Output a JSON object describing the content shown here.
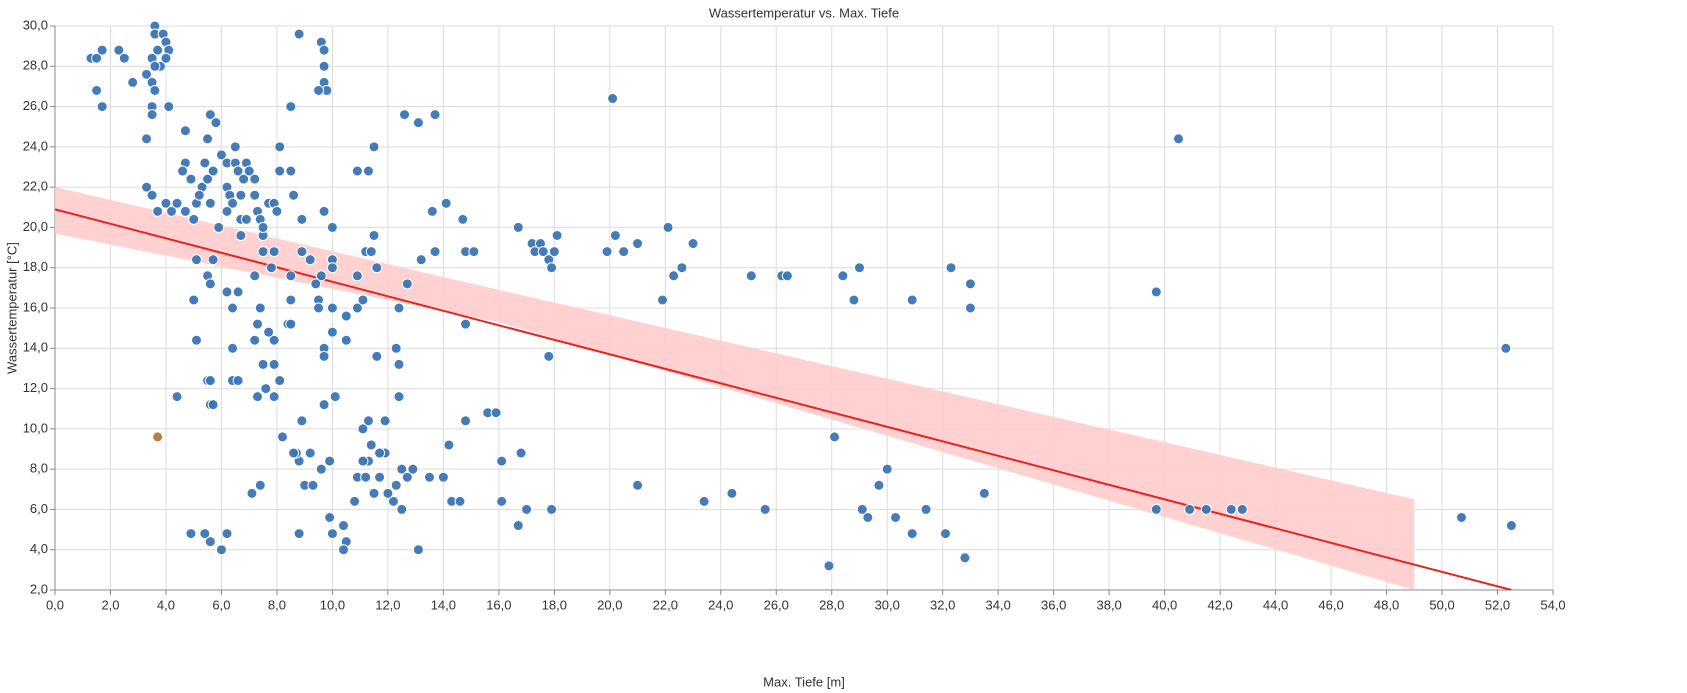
{
  "chart_data": {
    "type": "scatter",
    "title": "Wassertemperatur vs. Max. Tiefe",
    "x_label": "Max. Tiefe [m]",
    "y_label": "Wassertemperatur [°C]",
    "xlim": [
      0,
      54
    ],
    "ylim": [
      2,
      30
    ],
    "grid": true,
    "xticks": [
      {
        "value": 0,
        "label": "0,0"
      },
      {
        "value": 2,
        "label": "2,0"
      },
      {
        "value": 4,
        "label": "4,0"
      },
      {
        "value": 6,
        "label": "6,0"
      },
      {
        "value": 8,
        "label": "8,0"
      },
      {
        "value": 10,
        "label": "10,0"
      },
      {
        "value": 12,
        "label": "12,0"
      },
      {
        "value": 14,
        "label": "14,0"
      },
      {
        "value": 16,
        "label": "16,0"
      },
      {
        "value": 18,
        "label": "18,0"
      },
      {
        "value": 20,
        "label": "20,0"
      },
      {
        "value": 22,
        "label": "22,0"
      },
      {
        "value": 24,
        "label": "24,0"
      },
      {
        "value": 26,
        "label": "26,0"
      },
      {
        "value": 28,
        "label": "28,0"
      },
      {
        "value": 30,
        "label": "30,0"
      },
      {
        "value": 32,
        "label": "32,0"
      },
      {
        "value": 34,
        "label": "34,0"
      },
      {
        "value": 36,
        "label": "36,0"
      },
      {
        "value": 38,
        "label": "38,0"
      },
      {
        "value": 40,
        "label": "40,0"
      },
      {
        "value": 42,
        "label": "42,0"
      },
      {
        "value": 44,
        "label": "44,0"
      },
      {
        "value": 46,
        "label": "46,0"
      },
      {
        "value": 48,
        "label": "48,0"
      },
      {
        "value": 50,
        "label": "50,0"
      },
      {
        "value": 52,
        "label": "52,0"
      },
      {
        "value": 54,
        "label": "54,0"
      }
    ],
    "yticks": [
      {
        "value": 2,
        "label": "2,0"
      },
      {
        "value": 4,
        "label": "4,0"
      },
      {
        "value": 6,
        "label": "6,0"
      },
      {
        "value": 8,
        "label": "8,0"
      },
      {
        "value": 10,
        "label": "10,0"
      },
      {
        "value": 12,
        "label": "12,0"
      },
      {
        "value": 14,
        "label": "14,0"
      },
      {
        "value": 16,
        "label": "16,0"
      },
      {
        "value": 18,
        "label": "18,0"
      },
      {
        "value": 20,
        "label": "20,0"
      },
      {
        "value": 22,
        "label": "22,0"
      },
      {
        "value": 24,
        "label": "24,0"
      },
      {
        "value": 26,
        "label": "26,0"
      },
      {
        "value": 28,
        "label": "28,0"
      },
      {
        "value": 30,
        "label": "30,0"
      }
    ],
    "band": {
      "color": "#ffcccc",
      "x": [
        0,
        16,
        49
      ],
      "lower": [
        19.7,
        15.3,
        2.0
      ],
      "upper": [
        22.0,
        16.9,
        6.5
      ]
    },
    "trend": {
      "color": "#e8221f",
      "x": [
        0,
        52.5
      ],
      "values": [
        20.9,
        2.0
      ]
    },
    "series": [
      {
        "color": "#3a74b4",
        "x": [
          1.3,
          1.5,
          1.7,
          1.5,
          1.7,
          2.3,
          2.5,
          2.8,
          3.3,
          3.5,
          3.6,
          3.6,
          3.7,
          3.8,
          3.9,
          4.0,
          4.1,
          4.0,
          3.6,
          3.5,
          3.6,
          3.5,
          3.5,
          4.1,
          3.3,
          3.3,
          3.5,
          3.7,
          4.0,
          4.2,
          4.4,
          4.7,
          4.7,
          4.6,
          4.7,
          4.9,
          5.0,
          5.1,
          5.3,
          5.4,
          5.5,
          5.6,
          5.8,
          5.7,
          5.5,
          5.6,
          5.2,
          6.0,
          6.2,
          6.5,
          6.5,
          6.6,
          6.8,
          6.9,
          7.0,
          6.2,
          6.3,
          6.4,
          6.2,
          5.9,
          6.7,
          6.7,
          6.9,
          6.7,
          7.2,
          7.2,
          7.3,
          7.4,
          7.5,
          7.5,
          7.7,
          7.9,
          8.0,
          8.1,
          8.1,
          8.5,
          8.5,
          8.6,
          8.8,
          8.9,
          9.6,
          9.7,
          9.7,
          9.7,
          9.8,
          9.5,
          9.7,
          10.0,
          8.9,
          9.2,
          10.0,
          10.0,
          9.6,
          9.4,
          9.5,
          9.5,
          10.0,
          10.5,
          10.0,
          9.7,
          9.7,
          10.5,
          10.9,
          10.9,
          11.1,
          11.2,
          11.4,
          11.5,
          11.5,
          11.3,
          10.9,
          11.6,
          11.6,
          12.4,
          12.3,
          12.4,
          12.4,
          12.6,
          12.7,
          13.1,
          13.2,
          13.6,
          13.7,
          13.7,
          14.1,
          14.7,
          14.8,
          15.1,
          14.8,
          14.8,
          14.2,
          14.0,
          14.3,
          14.6,
          13.5,
          13.1,
          12.5,
          12.7,
          12.9,
          12.3,
          12.2,
          12.5,
          11.9,
          11.7,
          11.9,
          11.3,
          11.1,
          11.4,
          11.3,
          11.1,
          10.9,
          11.2,
          11.5,
          11.7,
          12.0,
          10.8,
          10.4,
          10.5,
          10.4,
          9.9,
          10.0,
          9.9,
          9.6,
          9.7,
          10.1,
          9.2,
          9.0,
          9.3,
          8.8,
          8.7,
          8.6,
          8.9,
          8.8,
          8.1,
          7.9,
          7.6,
          7.3,
          7.5,
          7.9,
          7.9,
          7.7,
          7.2,
          7.3,
          7.4,
          7.8,
          7.5,
          7.9,
          8.5,
          8.5,
          8.4,
          8.5,
          7.2,
          6.6,
          6.4,
          6.2,
          6.4,
          6.4,
          6.6,
          5.7,
          5.5,
          5.6,
          5.1,
          5.0,
          5.1,
          5.5,
          5.6,
          5.6,
          5.7,
          4.4,
          4.9,
          5.4,
          5.6,
          6.0,
          6.2,
          7.1,
          7.4,
          8.2,
          16.7,
          17.2,
          17.5,
          17.3,
          17.6,
          17.8,
          18.1,
          18.0,
          17.9,
          17.8,
          15.6,
          15.9,
          16.1,
          16.8,
          16.1,
          16.7,
          17.0,
          17.9,
          19.9,
          20.2,
          20.5,
          21.0,
          20.1,
          21.0,
          22.1,
          22.3,
          22.6,
          23.0,
          21.9,
          23.4,
          24.4,
          25.1,
          25.6,
          26.2,
          26.4,
          27.9,
          28.1,
          28.4,
          28.8,
          29.0,
          29.1,
          29.3,
          29.7,
          30.0,
          30.3,
          30.9,
          30.9,
          31.4,
          32.1,
          32.3,
          32.8,
          33.0,
          33.0,
          33.5,
          39.7,
          39.7,
          40.5,
          40.9,
          41.5,
          42.4,
          42.8,
          50.7,
          52.3,
          52.5
        ],
        "values": [
          28.4,
          28.4,
          28.8,
          26.8,
          26.0,
          28.8,
          28.4,
          27.2,
          27.6,
          28.4,
          30.0,
          29.6,
          28.8,
          28.0,
          29.6,
          29.2,
          28.8,
          28.4,
          28.0,
          27.2,
          26.8,
          26.0,
          25.6,
          26.0,
          24.4,
          22.0,
          21.6,
          20.8,
          21.2,
          20.8,
          21.2,
          24.8,
          23.2,
          22.8,
          20.8,
          22.4,
          20.4,
          21.2,
          22.0,
          23.2,
          24.4,
          25.6,
          25.2,
          22.8,
          22.4,
          21.2,
          21.6,
          23.6,
          23.2,
          24.0,
          23.2,
          22.8,
          22.4,
          23.2,
          22.8,
          22.0,
          21.6,
          21.2,
          20.8,
          20.0,
          21.6,
          20.4,
          20.4,
          19.6,
          22.4,
          21.6,
          20.8,
          20.4,
          19.6,
          20.0,
          21.2,
          21.2,
          20.8,
          22.8,
          24.0,
          26.0,
          22.8,
          21.6,
          29.6,
          20.4,
          29.2,
          28.8,
          28.0,
          27.2,
          26.8,
          26.8,
          20.8,
          20.0,
          18.8,
          18.4,
          18.4,
          18.0,
          17.6,
          17.2,
          16.4,
          16.0,
          16.0,
          15.6,
          14.8,
          14.0,
          13.6,
          14.4,
          17.6,
          16.0,
          16.4,
          18.8,
          18.8,
          19.6,
          24.0,
          22.8,
          22.8,
          18.0,
          13.6,
          16.0,
          14.0,
          13.2,
          11.6,
          25.6,
          17.2,
          25.2,
          18.4,
          20.8,
          25.6,
          18.8,
          21.2,
          20.4,
          18.8,
          18.8,
          15.2,
          10.4,
          9.2,
          7.6,
          6.4,
          6.4,
          7.6,
          4.0,
          8.0,
          7.6,
          8.0,
          7.2,
          6.4,
          6.0,
          8.8,
          8.8,
          10.4,
          10.4,
          10.0,
          9.2,
          8.4,
          8.4,
          7.6,
          7.6,
          6.8,
          7.6,
          6.8,
          6.4,
          5.2,
          4.4,
          4.0,
          5.6,
          4.8,
          8.4,
          8.0,
          11.2,
          11.6,
          8.8,
          7.2,
          7.2,
          8.4,
          8.8,
          8.8,
          10.4,
          4.8,
          12.4,
          11.6,
          12.0,
          11.6,
          13.2,
          13.2,
          14.4,
          14.8,
          14.4,
          15.2,
          16.0,
          18.0,
          18.8,
          18.8,
          17.6,
          16.4,
          15.2,
          15.2,
          17.6,
          16.8,
          16.0,
          16.8,
          14.0,
          12.4,
          12.4,
          18.4,
          17.6,
          17.2,
          18.4,
          16.4,
          14.4,
          12.4,
          12.4,
          11.2,
          11.2,
          11.6,
          4.8,
          4.8,
          4.4,
          4.0,
          4.8,
          6.8,
          7.2,
          9.6,
          20.0,
          19.2,
          19.2,
          18.8,
          18.8,
          18.4,
          19.6,
          18.8,
          18.0,
          13.6,
          10.8,
          10.8,
          8.4,
          8.8,
          6.4,
          5.2,
          6.0,
          6.0,
          18.8,
          19.6,
          18.8,
          19.2,
          26.4,
          7.2,
          20.0,
          17.6,
          18.0,
          19.2,
          16.4,
          6.4,
          6.8,
          17.6,
          6.0,
          17.6,
          17.6,
          3.2,
          9.6,
          17.6,
          16.4,
          18.0,
          6.0,
          5.6,
          7.2,
          8.0,
          5.6,
          16.4,
          4.8,
          6.0,
          4.8,
          18.0,
          3.6,
          17.2,
          16.0,
          6.8,
          16.8,
          6.0,
          24.4,
          6.0,
          6.0,
          6.0,
          6.0,
          5.6,
          14.0,
          5.2
        ]
      },
      {
        "color": "#b5773a",
        "x": [
          3.7
        ],
        "values": [
          9.6
        ]
      }
    ]
  }
}
